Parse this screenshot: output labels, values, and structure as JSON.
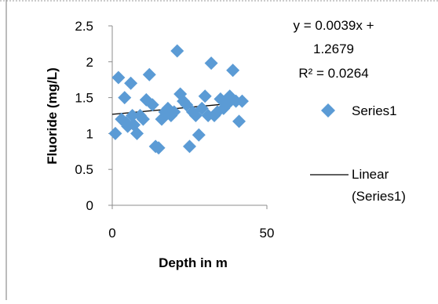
{
  "chart_data": {
    "type": "scatter",
    "title": "",
    "xlabel": "Depth in m",
    "ylabel": "Fluoride (mg/L)",
    "xlim": [
      0,
      50
    ],
    "ylim": [
      0,
      2.5
    ],
    "x_ticks": [
      "0",
      "50"
    ],
    "y_ticks": [
      "0",
      "0.5",
      "1",
      "1.5",
      "2",
      "2.5"
    ],
    "grid": false,
    "legend_position": "right",
    "series": [
      {
        "name": "Series1",
        "marker": "diamond",
        "color": "#5b9bd5",
        "points": [
          [
            1,
            1.0
          ],
          [
            2,
            1.78
          ],
          [
            3,
            1.2
          ],
          [
            4,
            1.5
          ],
          [
            4.5,
            1.15
          ],
          [
            5,
            1.1
          ],
          [
            6,
            1.7
          ],
          [
            6.5,
            1.25
          ],
          [
            7,
            1.12
          ],
          [
            8,
            1.0
          ],
          [
            9,
            1.25
          ],
          [
            10,
            1.2
          ],
          [
            11,
            1.47
          ],
          [
            12,
            1.82
          ],
          [
            13,
            1.4
          ],
          [
            14,
            0.82
          ],
          [
            15,
            0.8
          ],
          [
            16,
            1.2
          ],
          [
            17,
            1.3
          ],
          [
            18,
            1.35
          ],
          [
            19,
            1.25
          ],
          [
            20,
            1.3
          ],
          [
            21,
            2.15
          ],
          [
            22,
            1.55
          ],
          [
            23,
            1.45
          ],
          [
            24,
            1.4
          ],
          [
            25,
            0.82
          ],
          [
            26,
            1.3
          ],
          [
            27,
            1.25
          ],
          [
            28,
            0.98
          ],
          [
            29,
            1.35
          ],
          [
            30,
            1.52
          ],
          [
            31,
            1.25
          ],
          [
            32,
            1.98
          ],
          [
            33,
            1.25
          ],
          [
            34,
            1.3
          ],
          [
            35,
            1.48
          ],
          [
            36,
            1.35
          ],
          [
            37,
            1.4
          ],
          [
            38,
            1.52
          ],
          [
            39,
            1.88
          ],
          [
            40,
            1.45
          ],
          [
            41,
            1.17
          ],
          [
            42,
            1.45
          ]
        ]
      }
    ],
    "trendline": {
      "name": "Linear (Series1)",
      "slope": 0.0039,
      "intercept": 1.2679,
      "x_range": [
        0,
        42
      ],
      "color": "#000000",
      "equation": "y = 0.0039x + 1.2679",
      "equation_line1": "y = 0.0039x +",
      "equation_line2": "1.2679",
      "r_squared": "R² = 0.0264"
    },
    "legend": [
      {
        "label": "Series1",
        "type": "marker"
      },
      {
        "label_line1": "Linear",
        "label_line2": "(Series1)",
        "type": "line"
      }
    ]
  }
}
